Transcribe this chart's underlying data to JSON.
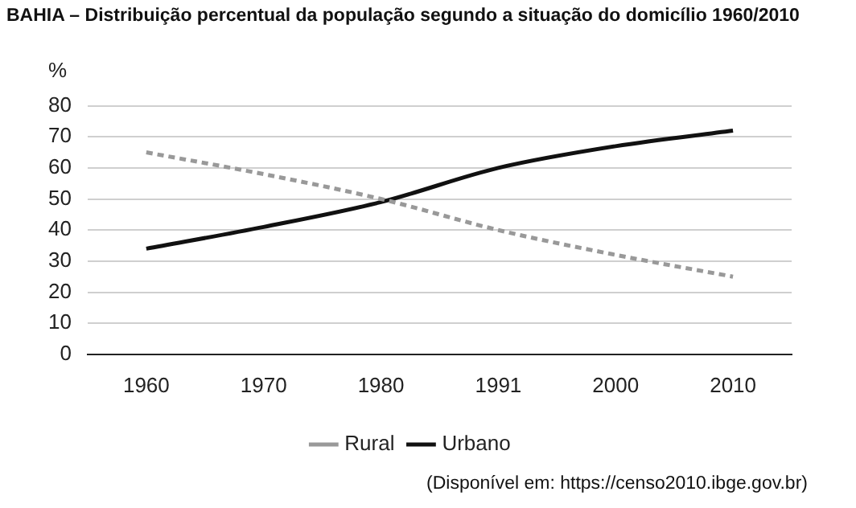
{
  "chart_data": {
    "type": "line",
    "title": "BAHIA – Distribuição percentual da população segundo a situação do domicílio 1960/2010",
    "ylabel": "%",
    "categories": [
      "1960",
      "1970",
      "1980",
      "1991",
      "2000",
      "2010"
    ],
    "series": [
      {
        "name": "Rural",
        "color": "#999999",
        "values": [
          65,
          58,
          50,
          40,
          32,
          25
        ],
        "line_style": "dashed"
      },
      {
        "name": "Urbano",
        "color": "#111111",
        "values": [
          34,
          41,
          49,
          60,
          67,
          72
        ],
        "line_style": "solid"
      }
    ],
    "ylim": [
      0,
      80
    ],
    "yticks": [
      0,
      10,
      20,
      30,
      40,
      50,
      60,
      70,
      80
    ],
    "grid": "y",
    "legend": "bottom",
    "marker": "none",
    "annotations": [
      "(Disponível em: https://censo2010.ibge.gov.br)"
    ]
  }
}
